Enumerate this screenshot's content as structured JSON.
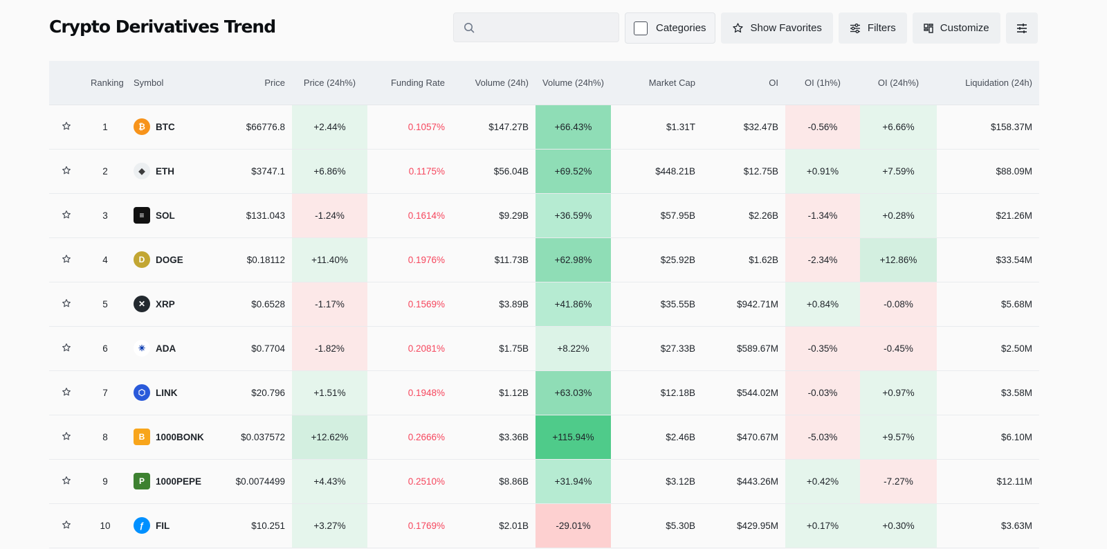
{
  "page": {
    "title": "Crypto Derivatives Trend"
  },
  "toolbar": {
    "search_placeholder": "",
    "categories_label": "Categories",
    "favorites_label": "Show Favorites",
    "filters_label": "Filters",
    "customize_label": "Customize"
  },
  "table": {
    "headers": [
      "",
      "Ranking",
      "Symbol",
      "Price",
      "Price (24h%)",
      "Funding Rate",
      "Volume (24h)",
      "Volume (24h%)",
      "Market Cap",
      "OI",
      "OI (1h%)",
      "OI (24h%)",
      "Liquidation (24h)"
    ],
    "rows": [
      {
        "rank": "1",
        "symbol": "BTC",
        "price": "$66776.8",
        "price_24h": "+2.44%",
        "funding": "0.1057%",
        "volume": "$147.27B",
        "volume_24h": "+66.43%",
        "mcap": "$1.31T",
        "oi": "$32.47B",
        "oi_1h": "-0.56%",
        "oi_24h": "+6.66%",
        "liq": "$158.37M",
        "icon": "btc-icon",
        "icon_color": "#f7931a",
        "icon_glyph": "₿"
      },
      {
        "rank": "2",
        "symbol": "ETH",
        "price": "$3747.1",
        "price_24h": "+6.86%",
        "funding": "0.1175%",
        "volume": "$56.04B",
        "volume_24h": "+69.52%",
        "mcap": "$448.21B",
        "oi": "$12.75B",
        "oi_1h": "+0.91%",
        "oi_24h": "+7.59%",
        "liq": "$88.09M",
        "icon": "eth-icon",
        "icon_color": "#eceff1",
        "icon_glyph": "◆"
      },
      {
        "rank": "3",
        "symbol": "SOL",
        "price": "$131.043",
        "price_24h": "-1.24%",
        "funding": "0.1614%",
        "volume": "$9.29B",
        "volume_24h": "+36.59%",
        "mcap": "$57.95B",
        "oi": "$2.26B",
        "oi_1h": "-1.34%",
        "oi_24h": "+0.28%",
        "liq": "$21.26M",
        "icon": "sol-icon",
        "icon_color": "#111111",
        "icon_glyph": "≡"
      },
      {
        "rank": "4",
        "symbol": "DOGE",
        "price": "$0.18112",
        "price_24h": "+11.40%",
        "funding": "0.1976%",
        "volume": "$11.73B",
        "volume_24h": "+62.98%",
        "mcap": "$25.92B",
        "oi": "$1.62B",
        "oi_1h": "-2.34%",
        "oi_24h": "+12.86%",
        "liq": "$33.54M",
        "icon": "doge-icon",
        "icon_color": "#c2a633",
        "icon_glyph": "D"
      },
      {
        "rank": "5",
        "symbol": "XRP",
        "price": "$0.6528",
        "price_24h": "-1.17%",
        "funding": "0.1569%",
        "volume": "$3.89B",
        "volume_24h": "+41.86%",
        "mcap": "$35.55B",
        "oi": "$942.71M",
        "oi_1h": "+0.84%",
        "oi_24h": "-0.08%",
        "liq": "$5.68M",
        "icon": "xrp-icon",
        "icon_color": "#23292f",
        "icon_glyph": "✕"
      },
      {
        "rank": "6",
        "symbol": "ADA",
        "price": "$0.7704",
        "price_24h": "-1.82%",
        "funding": "0.2081%",
        "volume": "$1.75B",
        "volume_24h": "+8.22%",
        "mcap": "$27.33B",
        "oi": "$589.67M",
        "oi_1h": "-0.35%",
        "oi_24h": "-0.45%",
        "liq": "$2.50M",
        "icon": "ada-icon",
        "icon_color": "#ffffff",
        "icon_glyph": "✳"
      },
      {
        "rank": "7",
        "symbol": "LINK",
        "price": "$20.796",
        "price_24h": "+1.51%",
        "funding": "0.1948%",
        "volume": "$1.12B",
        "volume_24h": "+63.03%",
        "mcap": "$12.18B",
        "oi": "$544.02M",
        "oi_1h": "-0.03%",
        "oi_24h": "+0.97%",
        "liq": "$3.58M",
        "icon": "link-icon",
        "icon_color": "#2a5ada",
        "icon_glyph": "⬡"
      },
      {
        "rank": "8",
        "symbol": "1000BONK",
        "price": "$0.037572",
        "price_24h": "+12.62%",
        "funding": "0.2666%",
        "volume": "$3.36B",
        "volume_24h": "+115.94%",
        "mcap": "$2.46B",
        "oi": "$470.67M",
        "oi_1h": "-5.03%",
        "oi_24h": "+9.57%",
        "liq": "$6.10M",
        "icon": "bonk-icon",
        "icon_color": "#f8a51b",
        "icon_glyph": "B"
      },
      {
        "rank": "9",
        "symbol": "1000PEPE",
        "price": "$0.0074499",
        "price_24h": "+4.43%",
        "funding": "0.2510%",
        "volume": "$8.86B",
        "volume_24h": "+31.94%",
        "mcap": "$3.12B",
        "oi": "$443.26M",
        "oi_1h": "+0.42%",
        "oi_24h": "-7.27%",
        "liq": "$12.11M",
        "icon": "pepe-icon",
        "icon_color": "#3d8130",
        "icon_glyph": "P"
      },
      {
        "rank": "10",
        "symbol": "FIL",
        "price": "$10.251",
        "price_24h": "+3.27%",
        "funding": "0.1769%",
        "volume": "$2.01B",
        "volume_24h": "-29.01%",
        "mcap": "$5.30B",
        "oi": "$429.95M",
        "oi_1h": "+0.17%",
        "oi_24h": "+0.30%",
        "liq": "$3.63M",
        "icon": "fil-icon",
        "icon_color": "#0090ff",
        "icon_glyph": "ƒ"
      }
    ]
  }
}
